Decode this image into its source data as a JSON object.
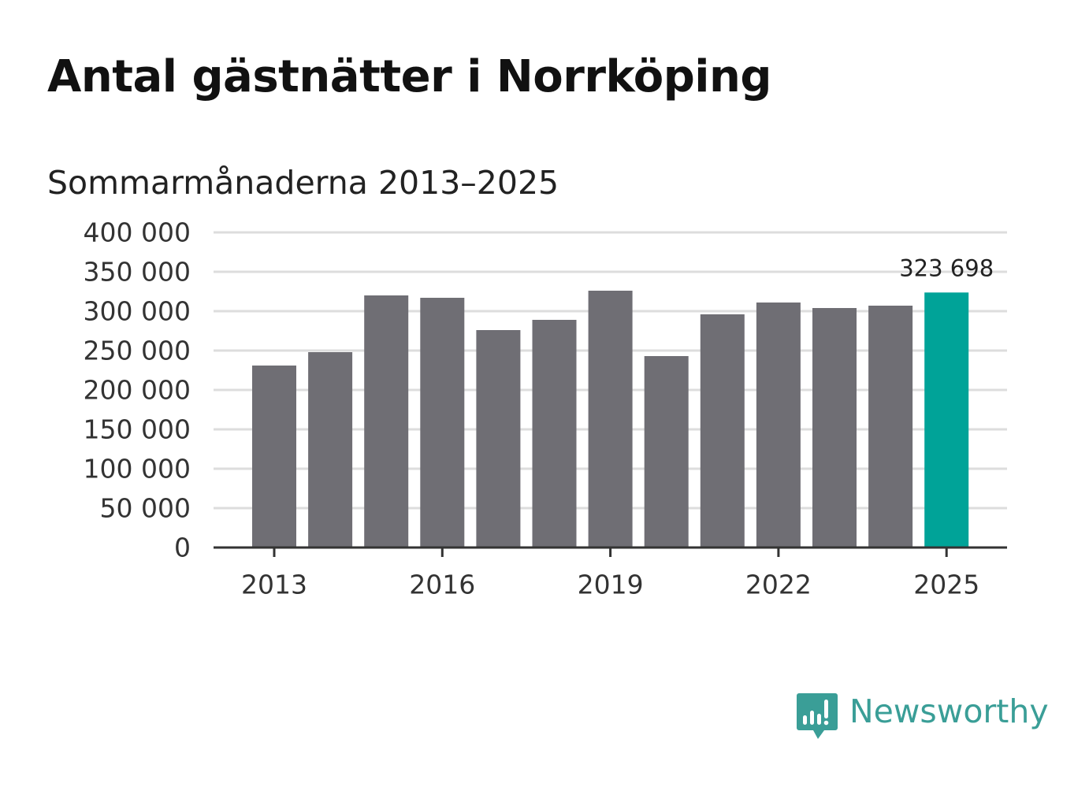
{
  "title": "Antal gästnätter i Norrköping",
  "subtitle": "Sommarmånaderna 2013–2025",
  "brand": {
    "name": "Newsworthy",
    "color": "#3a9e97",
    "icon": "newsworthy-logo-icon"
  },
  "colors": {
    "bar": "#6f6e74",
    "highlight": "#00a398",
    "grid": "#dddddd",
    "axis": "#333333"
  },
  "chart_data": {
    "type": "bar",
    "title": "Antal gästnätter i Norrköping",
    "subtitle": "Sommarmånaderna 2013–2025",
    "xlabel": "",
    "ylabel": "",
    "categories": [
      "2013",
      "2014",
      "2015",
      "2016",
      "2017",
      "2018",
      "2019",
      "2020",
      "2021",
      "2022",
      "2023",
      "2024",
      "2025"
    ],
    "values": [
      231000,
      248000,
      320000,
      317000,
      276000,
      289000,
      326000,
      243000,
      296000,
      311000,
      304000,
      307000,
      323698
    ],
    "x_tick_labels": [
      "2013",
      "2016",
      "2019",
      "2022",
      "2025"
    ],
    "y_ticks": [
      0,
      50000,
      100000,
      150000,
      200000,
      250000,
      300000,
      350000,
      400000
    ],
    "y_tick_labels": [
      "0",
      "50 000",
      "100 000",
      "150 000",
      "200 000",
      "250 000",
      "300 000",
      "350 000",
      "400 000"
    ],
    "ylim": [
      0,
      400000
    ],
    "grid": true,
    "legend": "none",
    "highlight_category": "2025",
    "annotations": [
      {
        "category": "2025",
        "text": "323 698"
      }
    ]
  }
}
